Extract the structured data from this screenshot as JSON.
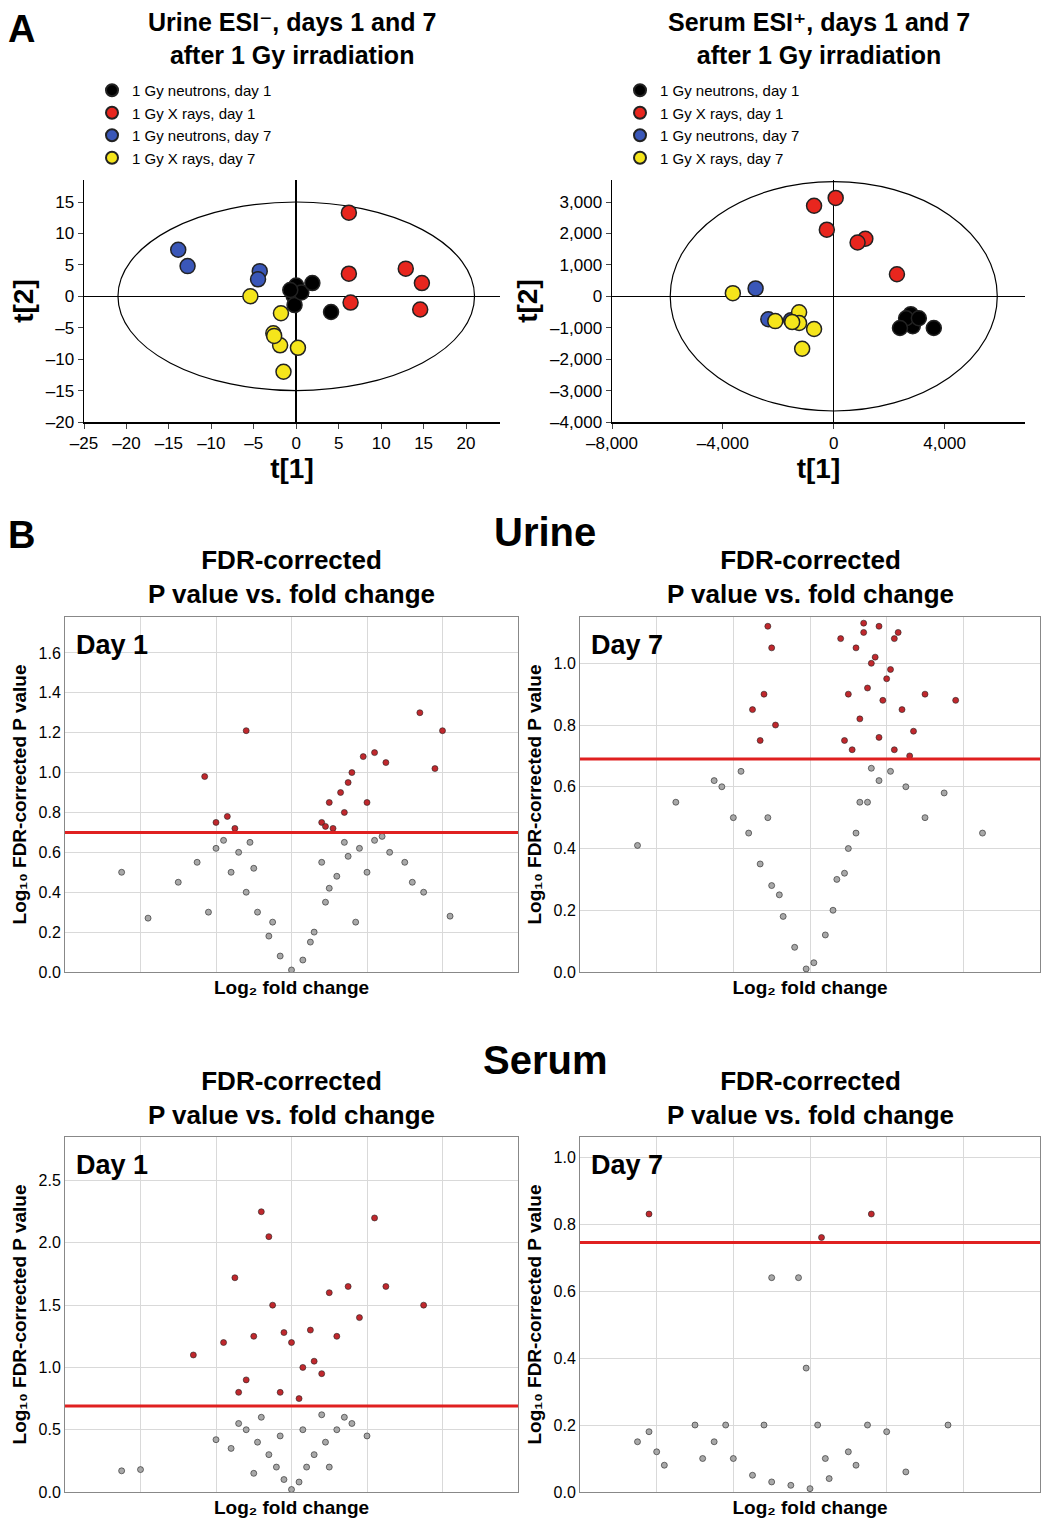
{
  "figure_labels": {
    "panels": [
      "A",
      "B"
    ],
    "sections": [
      "Urine",
      "Serum"
    ]
  },
  "chart_data": [
    {
      "type": "scatter",
      "title": [
        "Urine ESI⁻, days 1 and 7",
        "after 1 Gy irradiation"
      ],
      "xlabel": "t[1]",
      "ylabel": "t[2]",
      "xlim": [
        -25,
        24
      ],
      "ylim": [
        -20,
        18.5
      ],
      "xticks": [
        {
          "value": -25,
          "label": "–25"
        },
        {
          "value": -20,
          "label": "–20"
        },
        {
          "value": -15,
          "label": "–15"
        },
        {
          "value": -10,
          "label": "–10"
        },
        {
          "value": -5,
          "label": "–5"
        },
        0,
        5,
        10,
        15,
        20
      ],
      "yticks": [
        {
          "value": -20,
          "label": "–20"
        },
        {
          "value": -15,
          "label": "–15"
        },
        {
          "value": -10,
          "label": "–10"
        },
        {
          "value": -5,
          "label": "–5"
        },
        0,
        5,
        10,
        15
      ],
      "ellipse": {
        "x": [
          -21,
          21
        ],
        "y": [
          -15,
          15
        ]
      },
      "legend": "upper left",
      "grid": false,
      "series": [
        {
          "name": "1 Gy neutrons, day 1",
          "color": "#000000",
          "x": [
            0,
            -0.3,
            -0.2,
            0.6,
            1.9,
            4.1,
            -0.7
          ],
          "values": [
            1.7,
            0,
            -1.4,
            0.6,
            2.1,
            -2.5,
            1.0
          ]
        },
        {
          "name": "1 Gy X rays, day 1",
          "color": "#e8261e",
          "x": [
            6.2,
            6.2,
            6.4,
            12.9,
            14.8,
            14.6
          ],
          "values": [
            13.3,
            3.6,
            -1.0,
            4.4,
            2.1,
            -2.1
          ]
        },
        {
          "name": "1 Gy neutrons, day 7",
          "color": "#3a57b8",
          "x": [
            -13.9,
            -12.8,
            -4.3,
            -4.5
          ],
          "values": [
            7.4,
            4.8,
            4.0,
            2.7
          ]
        },
        {
          "name": "1 Gy X rays, day 7",
          "color": "#f5e51b",
          "x": [
            -5.4,
            -1.8,
            -2.7,
            -1.9,
            0.2,
            -1.5,
            -2.6
          ],
          "values": [
            0,
            -2.7,
            -5.9,
            -7.8,
            -8.2,
            -12.0,
            -6.3
          ]
        }
      ]
    },
    {
      "type": "scatter",
      "title": [
        "Serum ESI⁺, days 1 and 7",
        "after 1 Gy irradiation"
      ],
      "xlabel": "t[1]",
      "ylabel": "t[2]",
      "xlim": [
        -8000,
        6900
      ],
      "ylim": [
        -4000,
        3700
      ],
      "xticks": [
        {
          "value": -8000,
          "label": "–8,000"
        },
        {
          "value": -4000,
          "label": "–4,000"
        },
        0,
        {
          "value": 4000,
          "label": "4,000"
        }
      ],
      "yticks": [
        {
          "value": -4000,
          "label": "–4,000"
        },
        {
          "value": -3000,
          "label": "–3,000"
        },
        {
          "value": -2000,
          "label": "–2,000"
        },
        {
          "value": -1000,
          "label": "–1,000"
        },
        0,
        {
          "value": 1000,
          "label": "1,000"
        },
        {
          "value": 2000,
          "label": "2,000"
        },
        {
          "value": 3000,
          "label": "3,000"
        }
      ],
      "ellipse": {
        "x": [
          -5900,
          5900
        ],
        "y": [
          -3650,
          3650
        ]
      },
      "legend": "upper left",
      "grid": false,
      "series": [
        {
          "name": "1 Gy neutrons, day 1",
          "color": "#000000",
          "x": [
            3610,
            2780,
            2850,
            2610,
            3070,
            2390
          ],
          "values": [
            -1010,
            -570,
            -950,
            -700,
            -700,
            -1010
          ]
        },
        {
          "name": "1 Gy X rays, day 1",
          "color": "#e8261e",
          "x": [
            70,
            -710,
            -250,
            1140,
            860,
            2280
          ],
          "values": [
            3130,
            2880,
            2120,
            1830,
            1710,
            700
          ]
        },
        {
          "name": "1 Gy neutrons, day 7",
          "color": "#3a57b8",
          "x": [
            -2820,
            -2360,
            -1540
          ],
          "values": [
            250,
            -730,
            -760
          ]
        },
        {
          "name": "1 Gy X rays, day 7",
          "color": "#f5e51b",
          "x": [
            -3640,
            -2110,
            -1250,
            -1250,
            -710,
            -1140,
            -1500
          ],
          "values": [
            100,
            -790,
            -510,
            -850,
            -1040,
            -1670,
            -820
          ]
        }
      ]
    },
    {
      "type": "scatter",
      "title": [
        "FDR-corrected",
        "P value vs. fold change"
      ],
      "annotation": "Day 1",
      "xlabel": "Log₂ fold change",
      "ylabel": "Log₁₀ FDR-corrected P value",
      "xlim": [
        -6,
        6
      ],
      "ylim": [
        0,
        1.78
      ],
      "xticks": [
        -4,
        -2,
        0,
        2,
        4
      ],
      "yticks": [
        {
          "value": 0,
          "label": "0.0"
        },
        0.2,
        0.4,
        0.6,
        0.8,
        {
          "value": 1,
          "label": "1.0"
        },
        1.2,
        1.4,
        1.6
      ],
      "threshold": 0.7,
      "tick_labels": "y",
      "grid": true,
      "series": [
        {
          "color": "#a8a8a8",
          "x": [
            -3.8,
            -3.0,
            -2.5,
            -2.0,
            -1.6,
            -1.2,
            -0.9,
            -0.6,
            -0.3,
            0,
            0.3,
            0.6,
            0.9,
            1.2,
            1.5,
            1.8,
            2.2,
            2.6,
            3.0,
            3.5,
            -1.8,
            -1.4,
            -1.0,
            -0.5,
            0.5,
            1.0,
            1.4,
            2.0,
            2.4,
            -2.2,
            1.7,
            3.2,
            -4.5,
            4.2,
            -1.1,
            0.8
          ],
          "values": [
            0.27,
            0.45,
            0.55,
            0.62,
            0.5,
            0.4,
            0.3,
            0.18,
            0.08,
            0.01,
            0.06,
            0.2,
            0.35,
            0.48,
            0.58,
            0.62,
            0.66,
            0.6,
            0.55,
            0.4,
            0.66,
            0.6,
            0.52,
            0.25,
            0.15,
            0.42,
            0.65,
            0.5,
            0.68,
            0.3,
            0.25,
            0.45,
            0.5,
            0.28,
            0.65,
            0.55
          ]
        },
        {
          "color": "#c0282d",
          "x": [
            -2.0,
            -1.7,
            -1.2,
            -2.3,
            0.8,
            1.0,
            1.3,
            1.6,
            1.9,
            2.2,
            2.5,
            1.1,
            1.4,
            3.4,
            4.0,
            3.8,
            1.5,
            2.0,
            0.9,
            -1.5
          ],
          "values": [
            0.75,
            0.78,
            1.21,
            0.98,
            0.75,
            0.85,
            0.9,
            1.0,
            1.08,
            1.1,
            1.05,
            0.72,
            0.8,
            1.3,
            1.21,
            1.02,
            0.95,
            0.85,
            0.73,
            0.72
          ]
        }
      ]
    },
    {
      "type": "scatter",
      "title": [
        "FDR-corrected",
        "P value vs. fold change"
      ],
      "annotation": "Day 7",
      "xlabel": "Log₂ fold change",
      "ylabel": "Log₁₀ FDR-corrected P value",
      "xlim": [
        -6,
        6
      ],
      "ylim": [
        0,
        1.15
      ],
      "xticks": [
        -4,
        -2,
        0,
        2,
        4
      ],
      "yticks": [
        {
          "value": 0,
          "label": "0.0"
        },
        0.2,
        0.4,
        0.6,
        0.8,
        {
          "value": 1,
          "label": "1.0"
        }
      ],
      "threshold": 0.69,
      "tick_labels": "y",
      "grid": true,
      "series": [
        {
          "color": "#a8a8a8",
          "x": [
            -4.5,
            -3.5,
            -2.5,
            -2.0,
            -1.6,
            -1.3,
            -1.0,
            -0.7,
            -0.4,
            -0.1,
            0.1,
            0.4,
            0.6,
            0.9,
            1.2,
            1.5,
            1.8,
            2.1,
            2.5,
            3.0,
            4.5,
            -1.8,
            -1.1,
            0.7,
            1.0,
            1.3,
            1.6,
            -2.3,
            3.5,
            -0.8
          ],
          "values": [
            0.41,
            0.55,
            0.62,
            0.5,
            0.45,
            0.35,
            0.28,
            0.18,
            0.08,
            0.01,
            0.03,
            0.12,
            0.2,
            0.32,
            0.45,
            0.55,
            0.62,
            0.65,
            0.6,
            0.5,
            0.45,
            0.65,
            0.5,
            0.3,
            0.4,
            0.55,
            0.66,
            0.6,
            0.58,
            0.25
          ]
        },
        {
          "color": "#c0282d",
          "x": [
            -1.3,
            -1.2,
            -1.0,
            -0.9,
            -1.5,
            -1.1,
            0.9,
            1.0,
            1.2,
            1.4,
            1.6,
            1.8,
            2.0,
            2.2,
            2.4,
            2.7,
            1.1,
            1.3,
            1.5,
            1.7,
            1.9,
            2.1,
            2.3,
            2.6,
            1.4,
            1.8,
            2.2,
            0.8,
            3.0,
            3.8
          ],
          "values": [
            0.75,
            0.9,
            1.05,
            0.8,
            0.85,
            1.12,
            0.75,
            0.9,
            1.05,
            1.1,
            1.0,
            1.12,
            0.95,
            1.08,
            0.85,
            0.78,
            0.72,
            0.82,
            0.92,
            1.02,
            0.88,
            0.98,
            1.1,
            0.7,
            1.13,
            0.76,
            0.72,
            1.08,
            0.9,
            0.88
          ]
        }
      ]
    },
    {
      "type": "scatter",
      "title": [
        "FDR-corrected",
        "P value vs. fold change"
      ],
      "annotation": "Day 1",
      "xlabel": "Log₂ fold change",
      "ylabel": "Log₁₀ FDR-corrected P value",
      "xlim": [
        -6,
        6
      ],
      "ylim": [
        0,
        2.85
      ],
      "xticks": [
        -4,
        -2,
        0,
        2,
        4
      ],
      "yticks": [
        {
          "value": 0,
          "label": "0.0"
        },
        0.5,
        {
          "value": 1,
          "label": "1.0"
        },
        1.5,
        {
          "value": 2,
          "label": "2.0"
        },
        2.5
      ],
      "threshold": 0.69,
      "tick_labels": "y",
      "grid": true,
      "series": [
        {
          "color": "#a8a8a8",
          "x": [
            -4.5,
            -4.0,
            -2.0,
            -1.6,
            -1.2,
            -0.9,
            -0.6,
            -0.4,
            -0.2,
            0,
            0.2,
            0.4,
            0.6,
            0.9,
            1.2,
            1.6,
            2.0,
            -0.8,
            0.8,
            -1.4,
            1.4,
            0.3,
            -0.3,
            1.0,
            -1.0
          ],
          "values": [
            0.17,
            0.18,
            0.42,
            0.35,
            0.5,
            0.4,
            0.3,
            0.2,
            0.1,
            0.02,
            0.08,
            0.2,
            0.3,
            0.4,
            0.5,
            0.55,
            0.45,
            0.6,
            0.62,
            0.55,
            0.6,
            0.5,
            0.45,
            0.2,
            0.15
          ]
        },
        {
          "color": "#c0282d",
          "x": [
            -2.6,
            -1.8,
            -1.5,
            -1.2,
            -1.0,
            -0.8,
            -0.5,
            -0.3,
            0,
            0.3,
            0.5,
            0.8,
            1.0,
            1.2,
            1.5,
            2.2,
            2.5,
            3.5,
            -0.6,
            0.6,
            -0.2,
            0.2,
            1.8,
            -1.4
          ],
          "values": [
            1.1,
            1.2,
            1.72,
            0.9,
            1.25,
            2.25,
            1.5,
            0.8,
            1.2,
            1.0,
            1.3,
            0.95,
            1.6,
            1.25,
            1.65,
            2.2,
            1.65,
            1.5,
            2.05,
            1.05,
            1.28,
            0.75,
            1.4,
            0.8
          ]
        }
      ]
    },
    {
      "type": "scatter",
      "title": [
        "FDR-corrected",
        "P value vs. fold change"
      ],
      "annotation": "Day 7",
      "xlabel": "Log₂ fold change",
      "ylabel": "Log₁₀ FDR-corrected P value",
      "xlim": [
        -6,
        6
      ],
      "ylim": [
        0,
        1.06
      ],
      "xticks": [
        -4,
        -2,
        0,
        2,
        4
      ],
      "yticks": [
        {
          "value": 0,
          "label": "0.0"
        },
        0.2,
        0.4,
        0.6,
        0.8,
        {
          "value": 1,
          "label": "1.0"
        }
      ],
      "threshold": 0.745,
      "tick_labels": "y",
      "grid": true,
      "series": [
        {
          "color": "#a8a8a8",
          "x": [
            -4.5,
            -4.2,
            -4.0,
            -3.8,
            -3.0,
            -2.5,
            -2.0,
            -1.5,
            -1.0,
            -0.5,
            0,
            0.5,
            1.0,
            1.5,
            2.0,
            -2.2,
            -1.2,
            0.2,
            1.2,
            2.5,
            -0.3,
            -1.0,
            -0.1,
            0.4,
            -2.8,
            3.6
          ],
          "values": [
            0.15,
            0.18,
            0.12,
            0.08,
            0.2,
            0.15,
            0.1,
            0.05,
            0.03,
            0.02,
            0.01,
            0.04,
            0.12,
            0.2,
            0.18,
            0.2,
            0.2,
            0.2,
            0.08,
            0.06,
            0.64,
            0.64,
            0.37,
            0.1,
            0.1,
            0.2
          ]
        },
        {
          "color": "#c0282d",
          "x": [
            -4.2,
            0.3,
            1.6
          ],
          "values": [
            0.83,
            0.76,
            0.83
          ]
        }
      ]
    }
  ]
}
